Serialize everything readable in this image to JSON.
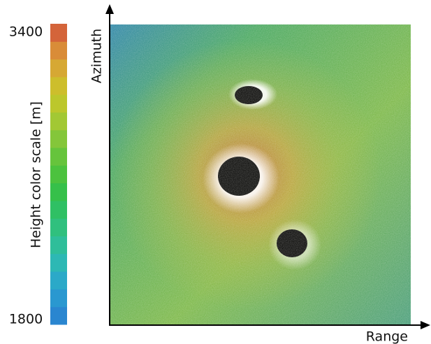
{
  "colorbar": {
    "label": "Height color scale [m]",
    "min": 1800,
    "max": 3400,
    "colors": [
      "#2a86d0",
      "#2a98d0",
      "#2ba9c8",
      "#2db8b4",
      "#2fbe9a",
      "#30c07e",
      "#2fc064",
      "#36c04a",
      "#4cc23e",
      "#66c43c",
      "#84c63a",
      "#a2c834",
      "#bcc72c",
      "#cdbe2c",
      "#d6a834",
      "#d98c38",
      "#d4643a"
    ]
  },
  "axes": {
    "x_label": "Range",
    "y_label": "Azimuth"
  }
}
